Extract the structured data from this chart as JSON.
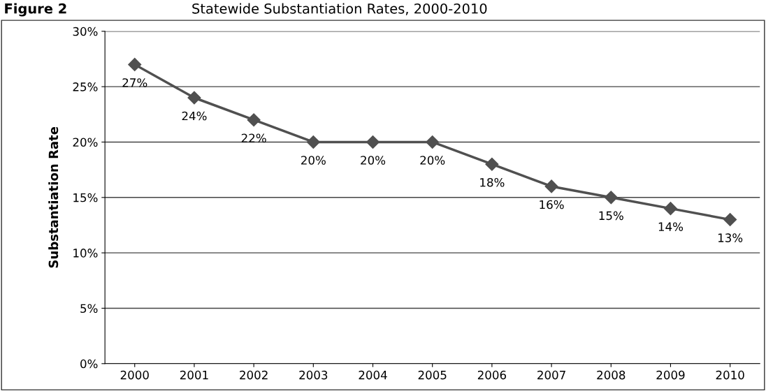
{
  "chart_data": {
    "type": "line",
    "title": "Statewide Substantiation Rates, 2000-2010",
    "annotations": [
      "Figure 2"
    ],
    "ylabel": "Substantiation Rate",
    "categories": [
      "2000",
      "2001",
      "2002",
      "2003",
      "2004",
      "2005",
      "2006",
      "2007",
      "2008",
      "2009",
      "2010"
    ],
    "series": [
      {
        "color": "#505050",
        "values": [
          27,
          24,
          22,
          20,
          20,
          20,
          18,
          16,
          15,
          14,
          13
        ],
        "value_labels": [
          "27%",
          "24%",
          "22%",
          "20%",
          "20%",
          "20%",
          "18%",
          "16%",
          "15%",
          "14%",
          "13%"
        ]
      }
    ],
    "ylim": [
      0,
      30
    ],
    "yticks": [
      {
        "value": 0,
        "label": "0%"
      },
      {
        "value": 5,
        "label": "5%"
      },
      {
        "value": 10,
        "label": "10%"
      },
      {
        "value": 15,
        "label": "15%"
      },
      {
        "value": 20,
        "label": "20%"
      },
      {
        "value": 25,
        "label": "25%"
      },
      {
        "value": 30,
        "label": "30%"
      }
    ],
    "grid": "y",
    "marker": "diamond",
    "line_style": "solid",
    "legend": false
  }
}
